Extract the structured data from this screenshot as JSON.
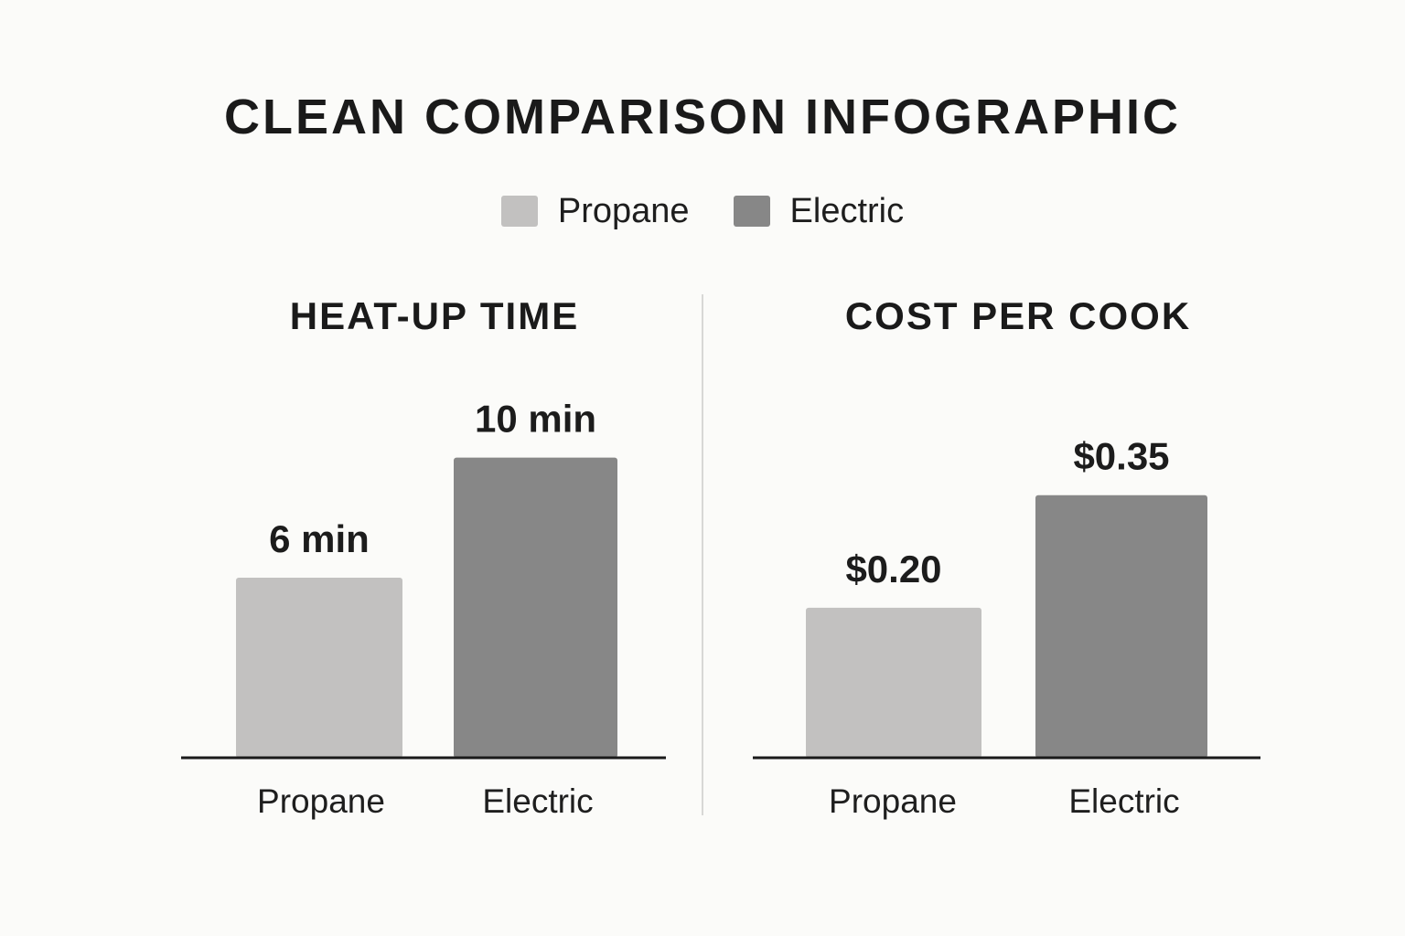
{
  "title": "CLEAN COMPARISON INFOGRAPHIC",
  "legend": {
    "items": [
      {
        "label": "Propane",
        "color": "#c2c1c0"
      },
      {
        "label": "Electric",
        "color": "#878787"
      }
    ]
  },
  "colors": {
    "propane": "#c2c1c0",
    "electric": "#878787",
    "axis": "#1a1a1a",
    "background": "#fbfbf9"
  },
  "chart_data": [
    {
      "type": "bar",
      "title": "HEAT-UP TIME",
      "categories": [
        "Propane",
        "Electric"
      ],
      "values": [
        6,
        10
      ],
      "value_labels": [
        "6 min",
        "10 min"
      ],
      "unit": "min",
      "ylim": [
        0,
        12
      ],
      "xlabel": "",
      "ylabel": "",
      "grid": false
    },
    {
      "type": "bar",
      "title": "COST PER COOK",
      "categories": [
        "Propane",
        "Electric"
      ],
      "values": [
        0.2,
        0.35
      ],
      "value_labels": [
        "$0.20",
        "$0.35"
      ],
      "unit": "$",
      "ylim": [
        0,
        0.48
      ],
      "xlabel": "",
      "ylabel": "",
      "grid": false
    }
  ]
}
